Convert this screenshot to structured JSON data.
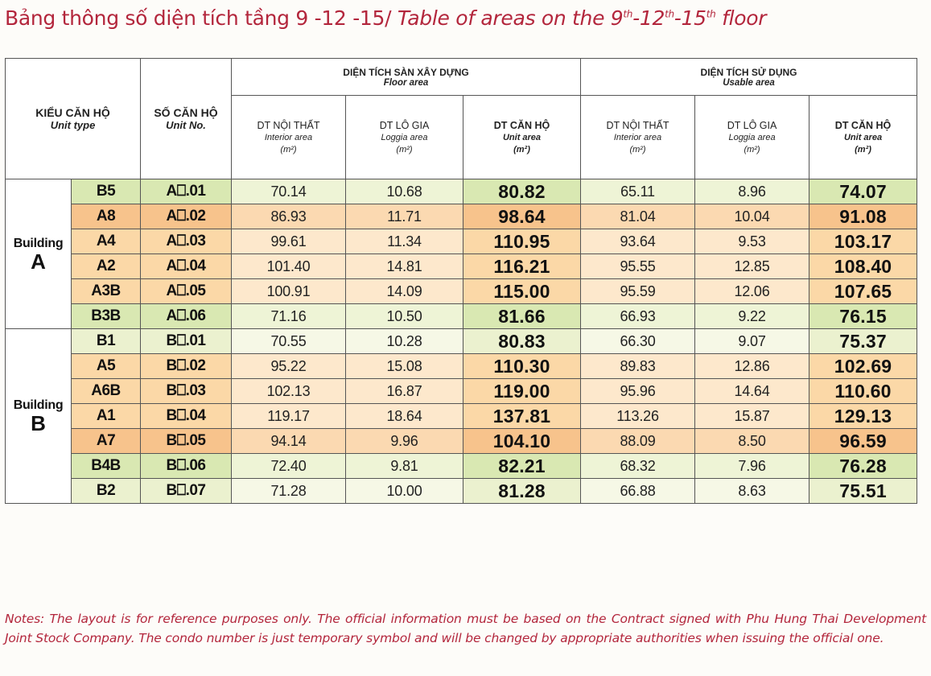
{
  "title": {
    "vi": "Bảng thông số diện tích tầng 9 -12 -15/",
    "en_prefix": "Table of areas on the 9",
    "sup1": "th",
    "en_mid1": "-12",
    "sup2": "th",
    "en_mid2": "-15",
    "sup3": "th",
    "en_suffix": " floor"
  },
  "header": {
    "unit_type_vi": "KIỂU CĂN HỘ",
    "unit_type_en": "Unit type",
    "unit_no_vi": "SỐ CĂN HỘ",
    "unit_no_en": "Unit No.",
    "floor_area_vi": "DIỆN TÍCH SÀN XÂY DỰNG",
    "floor_area_en": "Floor area",
    "usable_area_vi": "DIỆN TÍCH SỬ DỤNG",
    "usable_area_en": "Usable area",
    "interior_vi": "DT NỘI THẤT",
    "interior_en": "Interior area",
    "loggia_vi": "DT LÔ GIA",
    "loggia_en": "Loggia area",
    "unit_area_vi": "DT CĂN HỘ",
    "unit_area_en": "Unit area",
    "unit_m2": "(m²)"
  },
  "buildings": [
    {
      "word": "Building",
      "letter": "A",
      "rows": [
        {
          "type": "B5",
          "no": "A⎕.01",
          "f_int": "70.14",
          "f_log": "10.68",
          "f_unit": "80.82",
          "u_int": "65.11",
          "u_log": "8.96",
          "u_unit": "74.07",
          "color": "green"
        },
        {
          "type": "A8",
          "no": "A⎕.02",
          "f_int": "86.93",
          "f_log": "11.71",
          "f_unit": "98.64",
          "u_int": "81.04",
          "u_log": "10.04",
          "u_unit": "91.08",
          "color": "orange"
        },
        {
          "type": "A4",
          "no": "A⎕.03",
          "f_int": "99.61",
          "f_log": "11.34",
          "f_unit": "110.95",
          "u_int": "93.64",
          "u_log": "9.53",
          "u_unit": "103.17",
          "color": "peach"
        },
        {
          "type": "A2",
          "no": "A⎕.04",
          "f_int": "101.40",
          "f_log": "14.81",
          "f_unit": "116.21",
          "u_int": "95.55",
          "u_log": "12.85",
          "u_unit": "108.40",
          "color": "peach"
        },
        {
          "type": "A3B",
          "no": "A⎕.05",
          "f_int": "100.91",
          "f_log": "14.09",
          "f_unit": "115.00",
          "u_int": "95.59",
          "u_log": "12.06",
          "u_unit": "107.65",
          "color": "peach"
        },
        {
          "type": "B3B",
          "no": "A⎕.06",
          "f_int": "71.16",
          "f_log": "10.50",
          "f_unit": "81.66",
          "u_int": "66.93",
          "u_log": "9.22",
          "u_unit": "76.15",
          "color": "green"
        }
      ]
    },
    {
      "word": "Building",
      "letter": "B",
      "rows": [
        {
          "type": "B1",
          "no": "B⎕.01",
          "f_int": "70.55",
          "f_log": "10.28",
          "f_unit": "80.83",
          "u_int": "66.30",
          "u_log": "9.07",
          "u_unit": "75.37",
          "color": "light"
        },
        {
          "type": "A5",
          "no": "B⎕.02",
          "f_int": "95.22",
          "f_log": "15.08",
          "f_unit": "110.30",
          "u_int": "89.83",
          "u_log": "12.86",
          "u_unit": "102.69",
          "color": "peach"
        },
        {
          "type": "A6B",
          "no": "B⎕.03",
          "f_int": "102.13",
          "f_log": "16.87",
          "f_unit": "119.00",
          "u_int": "95.96",
          "u_log": "14.64",
          "u_unit": "110.60",
          "color": "peach"
        },
        {
          "type": "A1",
          "no": "B⎕.04",
          "f_int": "119.17",
          "f_log": "18.64",
          "f_unit": "137.81",
          "u_int": "113.26",
          "u_log": "15.87",
          "u_unit": "129.13",
          "color": "peach"
        },
        {
          "type": "A7",
          "no": "B⎕.05",
          "f_int": "94.14",
          "f_log": "9.96",
          "f_unit": "104.10",
          "u_int": "88.09",
          "u_log": "8.50",
          "u_unit": "96.59",
          "color": "orange"
        },
        {
          "type": "B4B",
          "no": "B⎕.06",
          "f_int": "72.40",
          "f_log": "9.81",
          "f_unit": "82.21",
          "u_int": "68.32",
          "u_log": "7.96",
          "u_unit": "76.28",
          "color": "green"
        },
        {
          "type": "B2",
          "no": "B⎕.07",
          "f_int": "71.28",
          "f_log": "10.00",
          "f_unit": "81.28",
          "u_int": "66.88",
          "u_log": "8.63",
          "u_unit": "75.51",
          "color": "light"
        }
      ]
    }
  ],
  "notes": "Notes: The layout is for reference purposes only. The official information must be based on the Contract signed with Phu Hung Thai Development Joint Stock Company. The condo number is just temporary symbol and will be changed by appropriate authorities when issuing the official one.",
  "colors": {
    "title": "#b3263c",
    "green": "#d9e8b2",
    "orange": "#f7c38c",
    "peach": "#fbd8a7",
    "light": "#ebf1cf",
    "highlight_header": "#fbd199"
  }
}
